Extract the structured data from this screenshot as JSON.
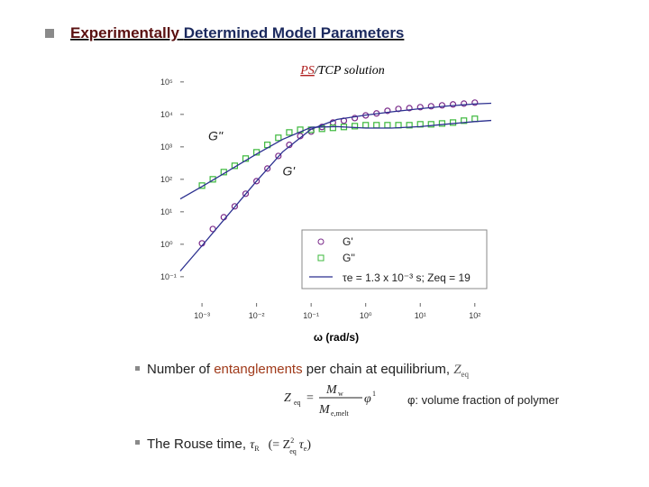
{
  "slide": {
    "title_parts": [
      "Experimentally",
      "Determined Model Parameters"
    ],
    "bullet1": {
      "parts": [
        "Number of ",
        "entanglements",
        " per chain at equilibrium, "
      ],
      "symbol": "Z",
      "sub": "eq"
    },
    "formula": {
      "lhs": "Z",
      "lhs_sub": "eq",
      "equals": "=",
      "num": "M",
      "num_sub": "w",
      "den": "M",
      "den_sub": "e,melt",
      "phi": "φ",
      "phi_exp": "1"
    },
    "note": "φ: volume fraction of polymer",
    "bullet2": {
      "text": "The Rouse time, ",
      "tau": "τ",
      "tau_sub": "R",
      "open": "(= Z",
      "z_exp": "2",
      "z_sub": "eq",
      "tau2": "τ",
      "tau2_sub": "e",
      "close": ")"
    }
  },
  "chart_data": {
    "type": "scatter",
    "title_parts": [
      "PS",
      "/TCP solution"
    ],
    "x_label": "ω (rad/s)",
    "log_x": true,
    "log_y": true,
    "grid": false,
    "xlim": [
      0.0004,
      200
    ],
    "ylim": [
      0.012,
      200000
    ],
    "xticks": [
      {
        "value": 0.001,
        "label": "10⁻³"
      },
      {
        "value": 0.01,
        "label": "10⁻²"
      },
      {
        "value": 0.1,
        "label": "10⁻¹"
      },
      {
        "value": 1,
        "label": "10⁰"
      },
      {
        "value": 10,
        "label": "10¹"
      },
      {
        "value": 100,
        "label": "10²"
      }
    ],
    "yticks": [
      {
        "value": 0.1,
        "label": "10⁻¹"
      },
      {
        "value": 1,
        "label": "10⁰"
      },
      {
        "value": 10,
        "label": "10¹"
      },
      {
        "value": 100,
        "label": "10²"
      },
      {
        "value": 1000,
        "label": "10³"
      },
      {
        "value": 10000,
        "label": "10⁴"
      },
      {
        "value": 100000,
        "label": "10⁵"
      }
    ],
    "legend": "lower right",
    "series": [
      {
        "name": "G'",
        "marker": "circle",
        "color": "#7a2a8a",
        "x": [
          0.001,
          0.00158,
          0.00251,
          0.00398,
          0.00631,
          0.01,
          0.0158,
          0.0251,
          0.0398,
          0.0631,
          0.1,
          0.158,
          0.251,
          0.398,
          0.631,
          1,
          1.58,
          2.51,
          3.98,
          6.31,
          10,
          15.8,
          25.1,
          39.8,
          63.1,
          100
        ],
        "values": [
          1.07,
          2.95,
          6.8,
          14.7,
          36,
          88,
          215,
          525,
          1150,
          2150,
          2950,
          4100,
          5600,
          6400,
          7700,
          9300,
          10700,
          12900,
          14700,
          15600,
          16700,
          17800,
          19000,
          20300,
          21500,
          23000
        ]
      },
      {
        "name": "G''",
        "marker": "square",
        "color": "#3cb83c",
        "x": [
          0.001,
          0.00158,
          0.00251,
          0.00398,
          0.00631,
          0.01,
          0.0158,
          0.0251,
          0.0398,
          0.0631,
          0.1,
          0.158,
          0.251,
          0.398,
          0.631,
          1,
          1.58,
          2.51,
          3.98,
          6.31,
          10,
          15.8,
          25.1,
          39.8,
          63.1,
          100
        ],
        "values": [
          64,
          100,
          167,
          261,
          436,
          680,
          1150,
          1900,
          2780,
          3360,
          3360,
          3600,
          3850,
          4100,
          4350,
          4650,
          4650,
          4650,
          4650,
          4650,
          4950,
          4950,
          5250,
          5600,
          6400,
          7300
        ]
      },
      {
        "name": "τe = 1.3 x 10⁻³ s; Zeq = 19",
        "marker": "line",
        "color": "#2b2f8f",
        "x": [
          0.0004,
          0.001,
          0.01,
          0.03,
          0.1,
          0.3,
          1,
          3,
          10,
          30,
          100,
          200
        ],
        "values": [
          0.15,
          0.9,
          88,
          700,
          3500,
          7000,
          9500,
          12000,
          15000,
          18000,
          21000,
          22000
        ]
      },
      {
        "marker": "line",
        "color": "#2b2f8f",
        "x": [
          0.0004,
          0.001,
          0.01,
          0.03,
          0.1,
          0.3,
          1,
          3,
          10,
          30,
          100,
          200
        ],
        "values": [
          25,
          60,
          600,
          1700,
          4000,
          4200,
          3800,
          3800,
          4200,
          5000,
          6000,
          6500
        ]
      }
    ],
    "annotations": [
      {
        "text": "G''",
        "x": 0.0013,
        "y": 1600
      },
      {
        "text": "G'",
        "x": 0.03,
        "y": 130
      }
    ]
  }
}
